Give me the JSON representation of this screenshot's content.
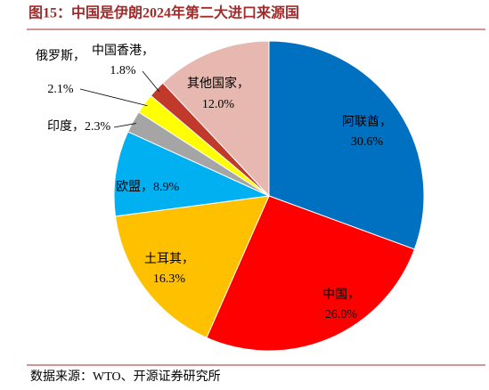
{
  "chart_data": {
    "type": "pie",
    "title": "图15：中国是伊朗2024年第二大进口来源国",
    "source": "数据来源：WTO、开源证券研究所",
    "categories": [
      "阿联酋，",
      "中国，",
      "土耳其，",
      "欧盟，",
      "印度，",
      "俄罗斯，",
      "中国香港，",
      "其他国家，"
    ],
    "values": [
      30.6,
      26.0,
      16.3,
      8.9,
      2.3,
      2.1,
      1.8,
      12.0
    ],
    "value_labels": [
      "30.6%",
      "26.0%",
      "16.3%",
      "8.9%",
      "2.3%",
      "2.1%",
      "1.8%",
      "12.0%"
    ],
    "colors": [
      "#0070c0",
      "#ff0000",
      "#ffc000",
      "#00b0f0",
      "#a5a5a5",
      "#ffff00",
      "#c0392b",
      "#e6b8b0"
    ]
  }
}
